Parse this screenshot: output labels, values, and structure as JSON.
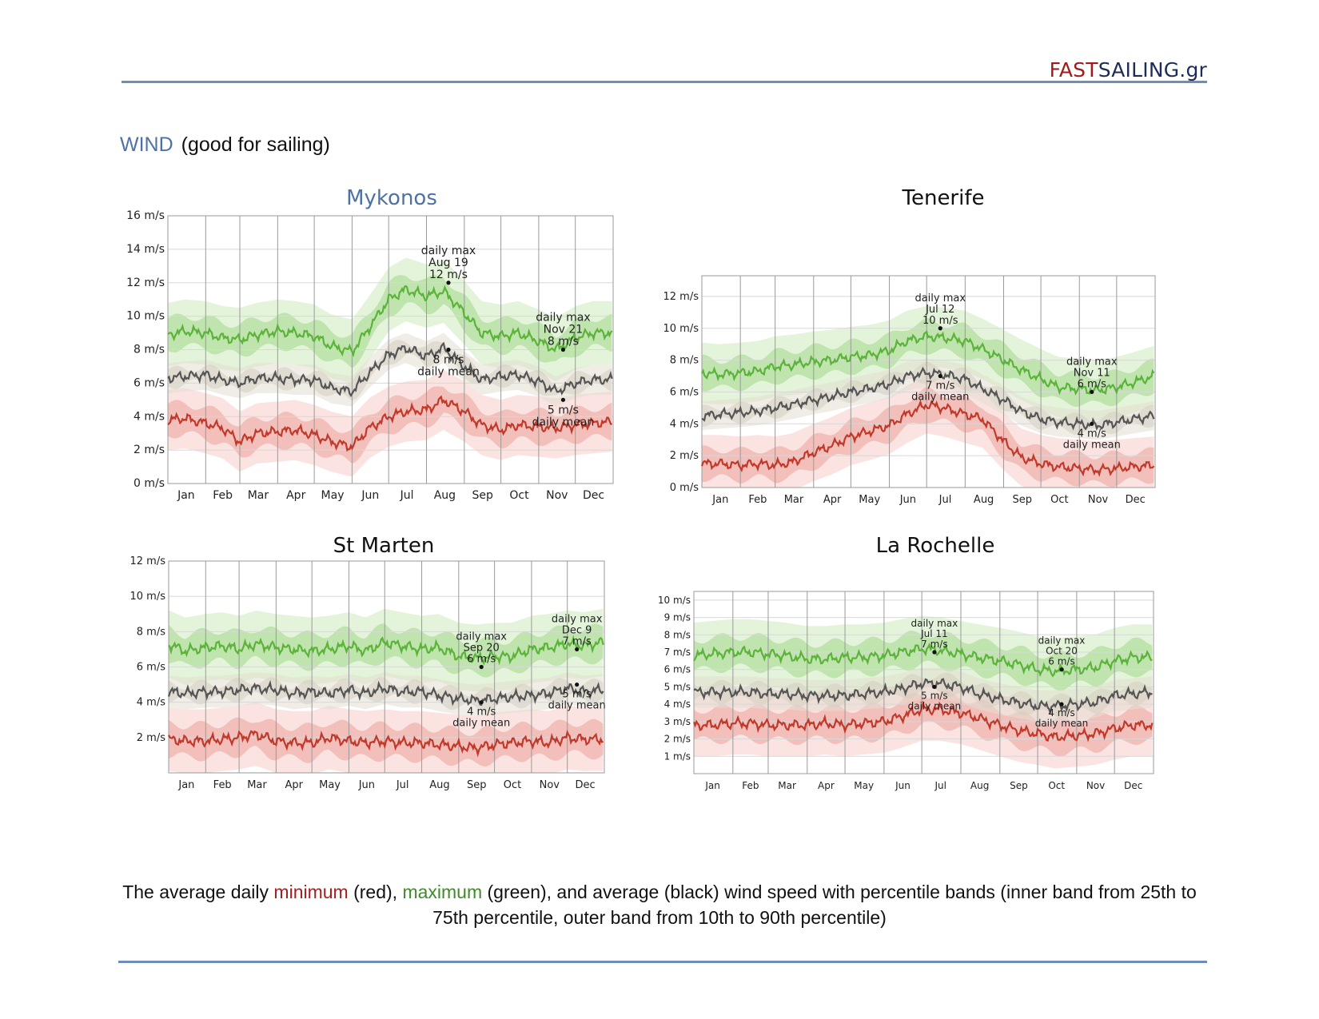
{
  "header": {
    "logo_part1": "FAST",
    "logo_part2": "SAILING.gr"
  },
  "section": {
    "keyword": "WIND",
    "title_rest": "(good for sailing)"
  },
  "colors": {
    "max_line": "#5bb33a",
    "max_band_inner": "#b8e0a6",
    "max_band_outer": "#def2d4",
    "min_line": "#c0392b",
    "min_band_inner": "#f1b8b3",
    "min_band_outer": "#f9dedb",
    "mean_line": "#555555",
    "title_accent": "#4f72a6"
  },
  "chart_data": [
    {
      "type": "area",
      "title": "Mykonos",
      "months": [
        "Jan",
        "Feb",
        "Mar",
        "Apr",
        "May",
        "Jun",
        "Jul",
        "Aug",
        "Sep",
        "Oct",
        "Nov",
        "Dec"
      ],
      "ylim": [
        0,
        16
      ],
      "yticks": [
        0,
        2,
        4,
        6,
        8,
        10,
        12,
        14,
        16
      ],
      "ytick_labels": [
        "0 m/s",
        "2 m/s",
        "4 m/s",
        "6 m/s",
        "8 m/s",
        "10 m/s",
        "12 m/s",
        "14 m/s",
        "16 m/s"
      ],
      "x_days": [
        1,
        15,
        32,
        46,
        60,
        74,
        91,
        105,
        121,
        135,
        152,
        166,
        182,
        196,
        213,
        227,
        244,
        258,
        274,
        288,
        305,
        319,
        335,
        349,
        365
      ],
      "series": [
        {
          "role": "max",
          "values": [
            8.9,
            9.1,
            9.0,
            8.7,
            8.6,
            8.9,
            9.1,
            9.0,
            8.8,
            8.2,
            7.9,
            9.3,
            11.0,
            11.6,
            11.2,
            11.5,
            10.2,
            9.0,
            8.8,
            9.0,
            8.5,
            8.0,
            8.7,
            9.0,
            9.0
          ]
        },
        {
          "role": "mean",
          "values": [
            6.3,
            6.4,
            6.5,
            6.2,
            6.0,
            6.3,
            6.3,
            6.2,
            6.2,
            5.7,
            5.5,
            6.6,
            7.7,
            8.1,
            7.6,
            8.1,
            7.0,
            6.2,
            6.4,
            6.5,
            6.1,
            5.5,
            6.0,
            6.2,
            6.2
          ]
        },
        {
          "role": "min",
          "values": [
            3.8,
            3.9,
            3.6,
            3.3,
            2.5,
            3.0,
            3.1,
            3.2,
            2.9,
            2.5,
            2.2,
            3.3,
            4.0,
            4.3,
            4.4,
            5.0,
            4.3,
            3.5,
            3.2,
            3.5,
            3.4,
            3.3,
            3.5,
            3.6,
            3.7
          ]
        }
      ],
      "annotations": [
        {
          "date": "Aug 19",
          "value": 12,
          "label_lines": [
            "daily max",
            "Aug 19",
            "12 m/s"
          ]
        },
        {
          "date": "Nov 21",
          "value": 8,
          "label_lines": [
            "daily max",
            "Nov 21",
            "8 m/s"
          ]
        },
        {
          "date": "Aug 19",
          "value": 8,
          "label_lines": [
            "8 m/s",
            "daily mean"
          ]
        },
        {
          "date": "Nov 21",
          "value": 5,
          "label_lines": [
            "5 m/s",
            "daily mean"
          ]
        }
      ]
    },
    {
      "type": "area",
      "title": "Tenerife",
      "months": [
        "Jan",
        "Feb",
        "Mar",
        "Apr",
        "May",
        "Jun",
        "Jul",
        "Aug",
        "Sep",
        "Oct",
        "Nov",
        "Dec"
      ],
      "ylim": [
        0,
        13.3
      ],
      "yticks": [
        0,
        2,
        4,
        6,
        8,
        10,
        12
      ],
      "ytick_labels": [
        "0 m/s",
        "2 m/s",
        "4 m/s",
        "6 m/s",
        "8 m/s",
        "10 m/s",
        "12 m/s"
      ],
      "x_days": [
        1,
        15,
        32,
        46,
        60,
        74,
        91,
        105,
        121,
        135,
        152,
        166,
        182,
        196,
        213,
        227,
        244,
        258,
        274,
        288,
        305,
        319,
        335,
        349,
        365
      ],
      "series": [
        {
          "role": "max",
          "values": [
            7.2,
            7.1,
            7.2,
            7.3,
            7.6,
            7.7,
            7.9,
            8.0,
            8.2,
            8.3,
            8.6,
            9.2,
            9.5,
            9.4,
            9.2,
            8.7,
            8.0,
            7.4,
            6.8,
            6.3,
            6.2,
            6.1,
            6.3,
            6.6,
            7.0
          ]
        },
        {
          "role": "mean",
          "values": [
            4.5,
            4.6,
            4.7,
            4.8,
            5.0,
            5.2,
            5.5,
            5.7,
            6.0,
            6.2,
            6.5,
            7.0,
            7.2,
            7.1,
            6.8,
            6.2,
            5.5,
            4.8,
            4.3,
            4.1,
            4.0,
            3.9,
            4.1,
            4.3,
            4.5
          ]
        },
        {
          "role": "min",
          "values": [
            1.5,
            1.5,
            1.4,
            1.5,
            1.4,
            1.6,
            2.2,
            2.6,
            3.2,
            3.5,
            3.9,
            4.6,
            5.2,
            5.0,
            4.6,
            4.3,
            2.9,
            1.9,
            1.5,
            1.3,
            1.2,
            1.1,
            1.2,
            1.3,
            1.4
          ]
        }
      ],
      "annotations": [
        {
          "date": "Jul 12",
          "value": 10,
          "label_lines": [
            "daily max",
            "Jul 12",
            "10 m/s"
          ]
        },
        {
          "date": "Nov 11",
          "value": 6,
          "label_lines": [
            "daily max",
            "Nov 11",
            "6 m/s"
          ]
        },
        {
          "date": "Jul 12",
          "value": 7,
          "label_lines": [
            "7 m/s",
            "daily mean"
          ]
        },
        {
          "date": "Nov 11",
          "value": 4,
          "label_lines": [
            "4 m/s",
            "daily mean"
          ]
        }
      ]
    },
    {
      "type": "area",
      "title": "St Marten",
      "months": [
        "Jan",
        "Feb",
        "Mar",
        "Apr",
        "May",
        "Jun",
        "Jul",
        "Aug",
        "Sep",
        "Oct",
        "Nov",
        "Dec"
      ],
      "ylim": [
        0,
        12
      ],
      "yticks": [
        2,
        4,
        6,
        8,
        10,
        12
      ],
      "ytick_labels": [
        "2 m/s",
        "4 m/s",
        "6 m/s",
        "8 m/s",
        "10 m/s",
        "12 m/s"
      ],
      "x_days": [
        1,
        15,
        32,
        46,
        60,
        74,
        91,
        105,
        121,
        135,
        152,
        166,
        182,
        196,
        213,
        227,
        244,
        258,
        274,
        288,
        305,
        319,
        335,
        349,
        365
      ],
      "series": [
        {
          "role": "max",
          "values": [
            7.3,
            6.9,
            7.1,
            7.2,
            7.0,
            7.3,
            7.1,
            7.0,
            6.9,
            7.0,
            7.2,
            6.9,
            7.4,
            7.2,
            7.0,
            7.1,
            6.6,
            6.5,
            6.6,
            6.6,
            7.0,
            7.1,
            7.3,
            7.2,
            7.4
          ]
        },
        {
          "role": "mean",
          "values": [
            4.6,
            4.5,
            4.6,
            4.6,
            4.7,
            4.8,
            4.7,
            4.5,
            4.6,
            4.5,
            4.7,
            4.5,
            4.8,
            4.6,
            4.6,
            4.4,
            4.2,
            4.1,
            4.2,
            4.3,
            4.4,
            4.5,
            4.8,
            4.6,
            4.7
          ]
        },
        {
          "role": "min",
          "values": [
            1.9,
            1.8,
            1.8,
            1.9,
            2.0,
            2.2,
            1.8,
            1.7,
            1.7,
            2.0,
            1.8,
            1.7,
            1.8,
            1.7,
            1.7,
            1.6,
            1.5,
            1.4,
            1.6,
            1.7,
            1.8,
            1.7,
            2.0,
            1.9,
            1.9
          ]
        }
      ],
      "annotations": [
        {
          "date": "Sep 20",
          "value": 6,
          "label_lines": [
            "daily max",
            "Sep 20",
            "6 m/s"
          ]
        },
        {
          "date": "Dec 9",
          "value": 7,
          "label_lines": [
            "daily max",
            "Dec 9",
            "7 m/s"
          ]
        },
        {
          "date": "Sep 20",
          "value": 4,
          "label_lines": [
            "4 m/s",
            "daily mean"
          ]
        },
        {
          "date": "Dec 9",
          "value": 5,
          "label_lines": [
            "5 m/s",
            "daily mean"
          ]
        }
      ]
    },
    {
      "type": "area",
      "title": "La Rochelle",
      "months": [
        "Jan",
        "Feb",
        "Mar",
        "Apr",
        "May",
        "Jun",
        "Jul",
        "Aug",
        "Sep",
        "Oct",
        "Nov",
        "Dec"
      ],
      "ylim": [
        0,
        10.5
      ],
      "yticks": [
        1,
        2,
        3,
        4,
        5,
        6,
        7,
        8,
        9,
        10
      ],
      "ytick_labels": [
        "1 m/s",
        "2 m/s",
        "3 m/s",
        "4 m/s",
        "5 m/s",
        "6 m/s",
        "7 m/s",
        "8 m/s",
        "9 m/s",
        "10 m/s"
      ],
      "x_days": [
        1,
        15,
        32,
        46,
        60,
        74,
        91,
        105,
        121,
        135,
        152,
        166,
        182,
        196,
        213,
        227,
        244,
        258,
        274,
        288,
        305,
        319,
        335,
        349,
        365
      ],
      "series": [
        {
          "role": "max",
          "values": [
            6.8,
            6.9,
            7.0,
            7.0,
            6.9,
            6.8,
            6.6,
            6.6,
            6.7,
            6.7,
            6.8,
            7.0,
            7.2,
            7.1,
            6.9,
            6.7,
            6.5,
            6.3,
            6.0,
            5.9,
            6.0,
            6.1,
            6.5,
            6.7,
            6.7
          ]
        },
        {
          "role": "mean",
          "values": [
            4.7,
            4.7,
            4.7,
            4.7,
            4.6,
            4.6,
            4.5,
            4.5,
            4.5,
            4.6,
            4.7,
            4.9,
            5.2,
            5.2,
            5.0,
            4.6,
            4.3,
            4.1,
            3.9,
            3.9,
            4.0,
            4.1,
            4.5,
            4.6,
            4.7
          ]
        },
        {
          "role": "min",
          "values": [
            2.8,
            2.8,
            2.9,
            2.9,
            2.8,
            2.8,
            2.8,
            2.9,
            2.8,
            2.9,
            3.0,
            3.3,
            3.7,
            3.7,
            3.5,
            3.2,
            2.8,
            2.5,
            2.3,
            2.1,
            2.2,
            2.3,
            2.6,
            2.8,
            2.8
          ]
        }
      ],
      "annotations": [
        {
          "date": "Jul 11",
          "value": 7,
          "label_lines": [
            "daily max",
            "Jul 11",
            "7 m/s"
          ]
        },
        {
          "date": "Oct 20",
          "value": 6,
          "label_lines": [
            "daily max",
            "Oct 20",
            "6 m/s"
          ]
        },
        {
          "date": "Jul 11",
          "value": 5,
          "label_lines": [
            "5 m/s",
            "daily mean"
          ]
        },
        {
          "date": "Oct 20",
          "value": 4,
          "label_lines": [
            "4 m/s",
            "daily mean"
          ]
        }
      ]
    }
  ],
  "caption": {
    "part1": "The average daily ",
    "minimum": "minimum",
    "part2": " (red), ",
    "maximum": "maximum",
    "part3": " (green), and average (black) wind speed with percentile bands (inner band from 25th to 75th percentile, outer band from 10th to 90th percentile)"
  }
}
